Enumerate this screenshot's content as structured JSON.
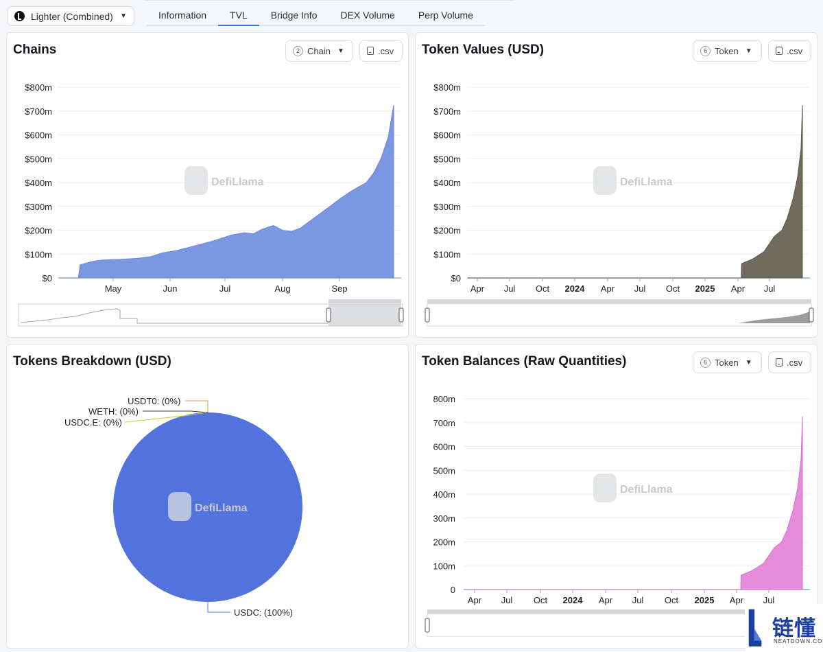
{
  "header": {
    "protocol": "Lighter (Combined)",
    "tabs": [
      "Information",
      "TVL",
      "Bridge Info",
      "DEX Volume",
      "Perp Volume"
    ],
    "active_tab": "TVL"
  },
  "watermark": "DefiLlama",
  "branding": {
    "name_cn": "链懂",
    "name_en": "NEATDOWN.COM"
  },
  "colors": {
    "chains": "#7b97e2",
    "token_values": "#706c5c",
    "token_balances": "#e58bdc",
    "pie": "#5273dd",
    "accent": "#3d72d9"
  },
  "panels": {
    "chains": {
      "title": "Chains",
      "selector_count": "2",
      "selector_label": "Chain",
      "csv_label": ".csv"
    },
    "token_values": {
      "title": "Token Values (USD)",
      "selector_count": "6",
      "selector_label": "Token",
      "csv_label": ".csv"
    },
    "breakdown": {
      "title": "Tokens Breakdown (USD)"
    },
    "token_balances": {
      "title": "Token Balances (Raw Quantities)",
      "selector_count": "6",
      "selector_label": "Token",
      "csv_label": ".csv"
    }
  },
  "chart_data": [
    {
      "id": "chains",
      "type": "area",
      "title": "Chains",
      "ylim": [
        0,
        800000000
      ],
      "yticks": [
        "$0",
        "$100m",
        "$200m",
        "$300m",
        "$400m",
        "$500m",
        "$600m",
        "$700m",
        "$800m"
      ],
      "xticks": [
        "May",
        "Jun",
        "Jul",
        "Aug",
        "Sep"
      ],
      "x": [
        "2025-04-01",
        "2025-04-12",
        "2025-04-13",
        "2025-04-20",
        "2025-04-25",
        "2025-05-05",
        "2025-05-15",
        "2025-05-22",
        "2025-05-28",
        "2025-06-05",
        "2025-06-15",
        "2025-06-25",
        "2025-07-05",
        "2025-07-12",
        "2025-07-17",
        "2025-07-22",
        "2025-07-28",
        "2025-08-02",
        "2025-08-07",
        "2025-08-12",
        "2025-08-20",
        "2025-08-28",
        "2025-09-03",
        "2025-09-10",
        "2025-09-17",
        "2025-09-21",
        "2025-09-25",
        "2025-09-29",
        "2025-10-02"
      ],
      "values": [
        0,
        0,
        55000000,
        70000000,
        75000000,
        78000000,
        83000000,
        90000000,
        105000000,
        115000000,
        135000000,
        155000000,
        180000000,
        190000000,
        185000000,
        205000000,
        220000000,
        200000000,
        195000000,
        210000000,
        255000000,
        300000000,
        335000000,
        370000000,
        400000000,
        440000000,
        500000000,
        590000000,
        725000000
      ],
      "grid": true
    },
    {
      "id": "token_values",
      "type": "area",
      "title": "Token Values (USD)",
      "ylim": [
        0,
        800000000
      ],
      "yticks": [
        "$0",
        "$100m",
        "$200m",
        "$300m",
        "$400m",
        "$500m",
        "$600m",
        "$700m",
        "$800m"
      ],
      "xticks": [
        "Apr",
        "Jul",
        "Oct",
        "2024",
        "Apr",
        "Jul",
        "Oct",
        "2025",
        "Apr",
        "Jul"
      ],
      "bold_xticks": [
        "2024",
        "2025"
      ],
      "x": [
        "2023-03-01",
        "2025-04-12",
        "2025-04-13",
        "2025-05-15",
        "2025-06-15",
        "2025-07-15",
        "2025-08-05",
        "2025-08-20",
        "2025-09-05",
        "2025-09-18",
        "2025-09-28",
        "2025-10-02"
      ],
      "values": [
        0,
        0,
        60000000,
        80000000,
        110000000,
        175000000,
        200000000,
        250000000,
        330000000,
        420000000,
        540000000,
        725000000
      ],
      "grid": true
    },
    {
      "id": "breakdown",
      "type": "pie",
      "title": "Tokens Breakdown (USD)",
      "slices": [
        {
          "label": "USDC: (100%)",
          "value": 100
        },
        {
          "label": "USDT0: (0%)",
          "value": 0
        },
        {
          "label": "WETH: (0%)",
          "value": 0
        },
        {
          "label": "USDC.E: (0%)",
          "value": 0
        }
      ]
    },
    {
      "id": "token_balances",
      "type": "area",
      "title": "Token Balances (Raw Quantities)",
      "ylim": [
        0,
        800000000
      ],
      "yticks": [
        "0",
        "100m",
        "200m",
        "300m",
        "400m",
        "500m",
        "600m",
        "700m",
        "800m"
      ],
      "xticks": [
        "Apr",
        "Jul",
        "Oct",
        "2024",
        "Apr",
        "Jul",
        "Oct",
        "2025",
        "Apr",
        "Jul"
      ],
      "bold_xticks": [
        "2024",
        "2025"
      ],
      "x": [
        "2023-03-01",
        "2025-04-12",
        "2025-04-13",
        "2025-05-15",
        "2025-06-15",
        "2025-07-15",
        "2025-08-05",
        "2025-08-20",
        "2025-09-05",
        "2025-09-18",
        "2025-09-28",
        "2025-10-02"
      ],
      "values": [
        0,
        0,
        60000000,
        80000000,
        110000000,
        175000000,
        200000000,
        250000000,
        330000000,
        420000000,
        540000000,
        725000000
      ],
      "grid": true
    }
  ]
}
